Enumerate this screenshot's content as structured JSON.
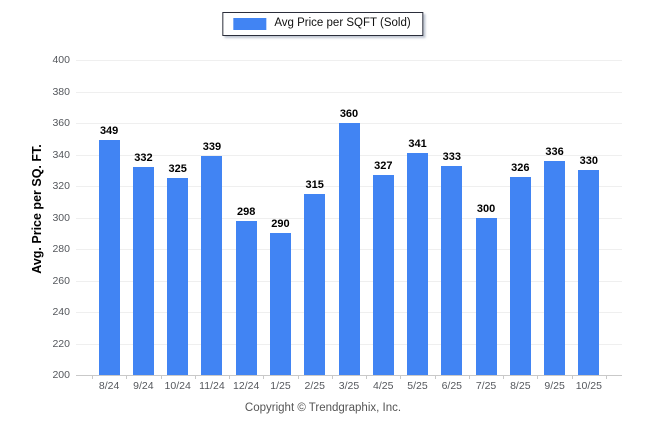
{
  "chart_data": {
    "type": "bar",
    "title": "",
    "categories": [
      "8/24",
      "9/24",
      "10/24",
      "11/24",
      "12/24",
      "1/25",
      "2/25",
      "3/25",
      "4/25",
      "5/25",
      "6/25",
      "7/25",
      "8/25",
      "9/25",
      "10/25"
    ],
    "series": [
      {
        "name": "Avg Price per SQFT (Sold)",
        "values": [
          349,
          332,
          325,
          339,
          298,
          290,
          315,
          360,
          327,
          341,
          333,
          300,
          326,
          336,
          330
        ]
      }
    ],
    "xlabel": "",
    "ylabel": "Avg. Price per SQ. FT.",
    "ylim": [
      200,
      400
    ],
    "ytick_step": 20,
    "grid": true,
    "legend_position": "top-center",
    "value_labels_shown": true
  },
  "legend": {
    "label": "Avg Price per SQFT (Sold)"
  },
  "footer": {
    "copyright": "Copyright © Trendgraphix, Inc."
  },
  "colors": {
    "bar": "#4184F3",
    "gridline": "#efefef",
    "axis_line": "#c9c9c9",
    "tick_text": "#54575c",
    "value_text": "#000000",
    "legend_border": "#2b2e3b",
    "background": "#ffffff"
  }
}
